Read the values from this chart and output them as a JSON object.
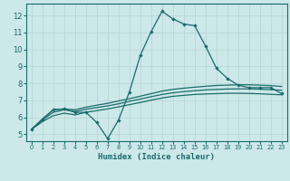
{
  "title": "",
  "xlabel": "Humidex (Indice chaleur)",
  "ylabel": "",
  "bg_color": "#cce8e8",
  "grid_color": "#b8d8d8",
  "line_color": "#1a6b6b",
  "xlim": [
    -0.5,
    23.5
  ],
  "ylim": [
    4.6,
    12.7
  ],
  "xticks": [
    0,
    1,
    2,
    3,
    4,
    5,
    6,
    7,
    8,
    9,
    10,
    11,
    12,
    13,
    14,
    15,
    16,
    17,
    18,
    19,
    20,
    21,
    22,
    23
  ],
  "yticks": [
    5,
    6,
    7,
    8,
    9,
    10,
    11,
    12
  ],
  "line1_x": [
    0,
    1,
    2,
    3,
    4,
    5,
    6,
    7,
    8,
    9,
    10,
    11,
    12,
    13,
    14,
    15,
    16,
    17,
    18,
    19,
    20,
    21,
    22,
    23
  ],
  "line1_y": [
    5.3,
    5.9,
    6.45,
    6.5,
    6.3,
    6.3,
    5.7,
    4.75,
    5.85,
    7.5,
    9.65,
    11.05,
    12.25,
    11.8,
    11.5,
    11.4,
    10.2,
    8.9,
    8.3,
    7.9,
    7.75,
    7.75,
    7.75,
    7.4
  ],
  "line2_x": [
    0,
    1,
    2,
    3,
    4,
    5,
    6,
    7,
    8,
    9,
    10,
    11,
    12,
    13,
    14,
    15,
    16,
    17,
    18,
    19,
    20,
    21,
    22,
    23
  ],
  "line2_y": [
    5.3,
    5.9,
    6.45,
    6.5,
    6.45,
    6.6,
    6.72,
    6.83,
    6.97,
    7.1,
    7.25,
    7.4,
    7.55,
    7.65,
    7.72,
    7.78,
    7.83,
    7.88,
    7.9,
    7.92,
    7.92,
    7.9,
    7.87,
    7.82
  ],
  "line3_x": [
    0,
    1,
    2,
    3,
    4,
    5,
    6,
    7,
    8,
    9,
    10,
    11,
    12,
    13,
    14,
    15,
    16,
    17,
    18,
    19,
    20,
    21,
    22,
    23
  ],
  "line3_y": [
    5.3,
    5.85,
    6.3,
    6.45,
    6.35,
    6.48,
    6.58,
    6.68,
    6.8,
    6.95,
    7.08,
    7.22,
    7.35,
    7.45,
    7.52,
    7.57,
    7.62,
    7.65,
    7.67,
    7.68,
    7.68,
    7.66,
    7.63,
    7.6
  ],
  "line4_x": [
    0,
    1,
    2,
    3,
    4,
    5,
    6,
    7,
    8,
    9,
    10,
    11,
    12,
    13,
    14,
    15,
    16,
    17,
    18,
    19,
    20,
    21,
    22,
    23
  ],
  "line4_y": [
    5.3,
    5.75,
    6.1,
    6.25,
    6.15,
    6.3,
    6.4,
    6.5,
    6.62,
    6.75,
    6.88,
    7.02,
    7.14,
    7.24,
    7.3,
    7.35,
    7.38,
    7.4,
    7.42,
    7.42,
    7.41,
    7.39,
    7.36,
    7.33
  ]
}
